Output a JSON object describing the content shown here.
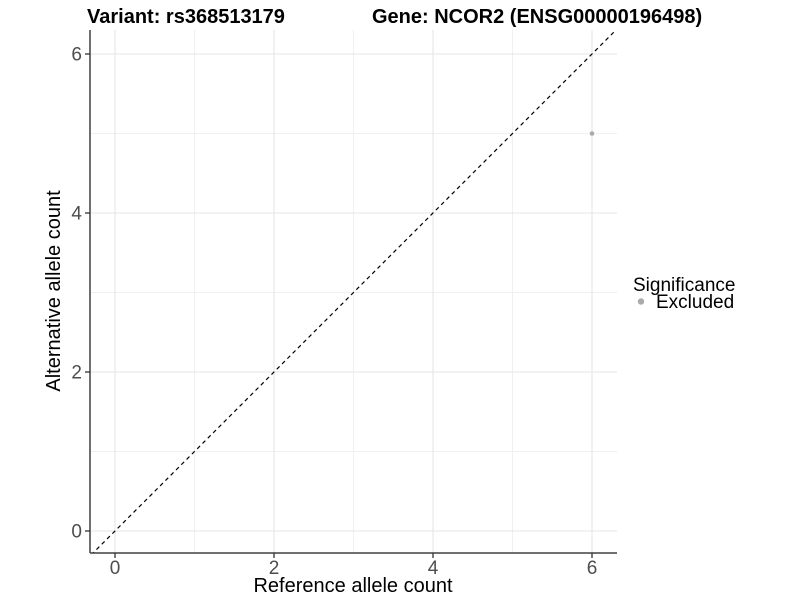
{
  "header": {
    "variant_title": "Variant: rs368513179",
    "gene_title": "Gene: NCOR2 (ENSG00000196498)"
  },
  "chart_data": {
    "type": "scatter",
    "title_left": "Variant: rs368513179",
    "title_right": "Gene: NCOR2 (ENSG00000196498)",
    "xlabel": "Reference allele count",
    "ylabel": "Alternative allele count",
    "xlim": [
      -0.3,
      6.3
    ],
    "ylim": [
      -0.3,
      6.3
    ],
    "x_major_ticks": [
      0,
      2,
      4,
      6
    ],
    "y_major_ticks": [
      0,
      2,
      4,
      6
    ],
    "x_minor_ticks": [
      1,
      3,
      5
    ],
    "y_minor_ticks": [
      1,
      3,
      5
    ],
    "grid": true,
    "reference_line": {
      "style": "dashed",
      "slope": 1,
      "intercept": 0,
      "color": "#000000"
    },
    "series": [
      {
        "name": "Excluded",
        "color": "#aaaaaa",
        "points": [
          {
            "x": 6,
            "y": 5
          }
        ]
      }
    ],
    "legend": {
      "title": "Significance",
      "position": "right",
      "items": [
        {
          "label": "Excluded",
          "color": "#aaaaaa",
          "marker": "circle"
        }
      ]
    }
  },
  "colors": {
    "background": "#ffffff",
    "grid_major": "#e5e5e5",
    "grid_minor": "#f0f0f0",
    "axis_line": "#404040",
    "tick_mark": "#333333",
    "tick_text": "#4d4d4d",
    "point": "#aaaaaa",
    "dashed_line": "#000000"
  }
}
